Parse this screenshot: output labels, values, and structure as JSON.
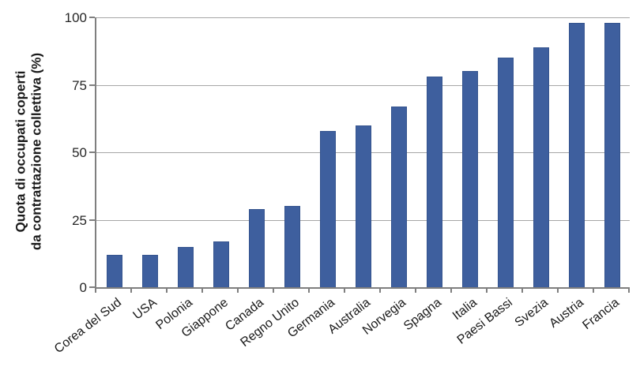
{
  "chart_data": {
    "type": "bar",
    "title": "",
    "xlabel": "",
    "ylabel": "Quota di occupati coperti\nda contrattazione collettiva (%)",
    "categories": [
      "Corea del Sud",
      "USA",
      "Polonia",
      "Giappone",
      "Canada",
      "Regno Unito",
      "Germania",
      "Australia",
      "Norvegia",
      "Spagna",
      "Italia",
      "Paesi Bassi",
      "Svezia",
      "Austria",
      "Francia"
    ],
    "values": [
      12,
      12,
      15,
      17,
      29,
      30,
      58,
      60,
      67,
      78,
      80,
      85,
      89,
      98,
      98
    ],
    "ylim": [
      0,
      100
    ],
    "yticks": [
      0,
      25,
      50,
      75,
      100
    ],
    "grid": "horizontal",
    "legend": "none",
    "colors": {
      "bar_fill": "#3e5f9e",
      "bar_border": "#35548e",
      "gridline": "#a6a6a6",
      "axis": "#7f7f7f",
      "text": "#1a1a1a"
    }
  }
}
